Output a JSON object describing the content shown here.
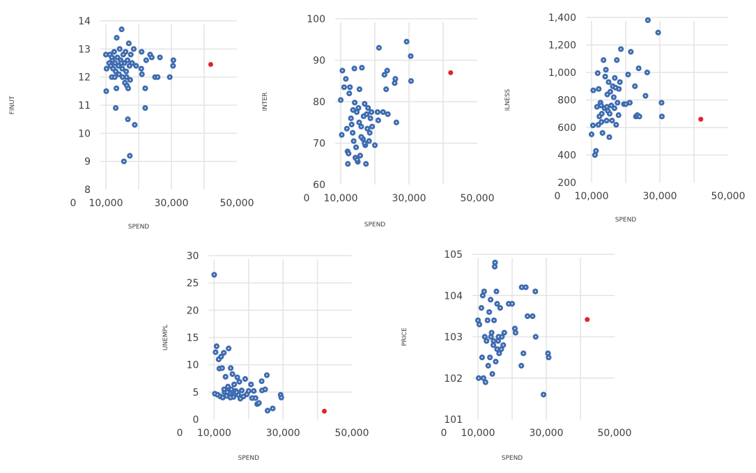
{
  "colors": {
    "point": "#3e6cb0",
    "highlight": "#e0242a",
    "grid": "#e3e3e3",
    "text": "#404040"
  },
  "chart_data": [
    {
      "type": "scatter",
      "id": "finut",
      "title": "",
      "xlabel": "SPEND",
      "ylabel": "FINUT",
      "xlim": [
        0,
        50000
      ],
      "ylim": [
        8,
        14
      ],
      "xticks": [
        0,
        10000,
        30000,
        50000
      ],
      "xtick_labels": [
        "0",
        "10,000",
        "30,000",
        "50,000"
      ],
      "xgrid": [
        10000,
        20000,
        30000,
        40000
      ],
      "yticks": [
        8,
        9,
        10,
        11,
        12,
        13,
        14
      ],
      "ytick_labels": [
        "8",
        "9",
        "10",
        "11",
        "12",
        "13",
        "14"
      ],
      "grid": true,
      "points": [
        [
          10000,
          12.8
        ],
        [
          10200,
          12.3
        ],
        [
          10100,
          11.5
        ],
        [
          11000,
          12.5
        ],
        [
          11200,
          12.8
        ],
        [
          11500,
          12.4
        ],
        [
          11800,
          12.0
        ],
        [
          12000,
          12.6
        ],
        [
          12200,
          12.3
        ],
        [
          12500,
          12.9
        ],
        [
          12800,
          12.5
        ],
        [
          13000,
          12.2
        ],
        [
          13200,
          11.6
        ],
        [
          13300,
          13.4
        ],
        [
          13500,
          12.7
        ],
        [
          13800,
          12.4
        ],
        [
          14000,
          12.1
        ],
        [
          14200,
          13.0
        ],
        [
          14500,
          12.6
        ],
        [
          14800,
          13.7
        ],
        [
          15000,
          12.3
        ],
        [
          15100,
          12.0
        ],
        [
          15300,
          12.8
        ],
        [
          15600,
          12.5
        ],
        [
          15800,
          11.8
        ],
        [
          16000,
          12.9
        ],
        [
          16200,
          12.2
        ],
        [
          16400,
          11.7
        ],
        [
          16600,
          12.6
        ],
        [
          16800,
          11.6
        ],
        [
          17000,
          13.2
        ],
        [
          17200,
          12.4
        ],
        [
          17400,
          11.9
        ],
        [
          17600,
          12.8
        ],
        [
          18000,
          12.5
        ],
        [
          18500,
          13.0
        ],
        [
          18800,
          10.3
        ],
        [
          19200,
          12.4
        ],
        [
          20800,
          12.3
        ],
        [
          20900,
          12.9
        ],
        [
          21000,
          12.1
        ],
        [
          22000,
          11.6
        ],
        [
          22300,
          12.6
        ],
        [
          23500,
          12.8
        ],
        [
          24000,
          12.7
        ],
        [
          25000,
          12.0
        ],
        [
          25800,
          12.0
        ],
        [
          26500,
          12.7
        ],
        [
          29500,
          12.0
        ],
        [
          30500,
          12.4
        ],
        [
          30600,
          12.6
        ],
        [
          13000,
          10.9
        ],
        [
          16700,
          10.5
        ],
        [
          15500,
          9.0
        ],
        [
          17300,
          9.2
        ],
        [
          22000,
          10.9
        ],
        [
          11800,
          12.7
        ],
        [
          12700,
          12.0
        ],
        [
          14700,
          12.5
        ],
        [
          16300,
          12.0
        ]
      ],
      "highlight_points": [
        [
          42000,
          12.45
        ]
      ]
    },
    {
      "type": "scatter",
      "id": "inter",
      "title": "",
      "xlabel": "SPEND",
      "ylabel": "INTER",
      "xlim": [
        0,
        50000
      ],
      "ylim": [
        60,
        100
      ],
      "xticks": [
        0,
        10000,
        30000,
        50000
      ],
      "xtick_labels": [
        "0",
        "10,000",
        "30,000",
        "50,000"
      ],
      "xgrid": [
        10000,
        20000,
        30000,
        40000
      ],
      "yticks": [
        60,
        70,
        80,
        90,
        100
      ],
      "ytick_labels": [
        "60",
        "70",
        "80",
        "90",
        "100"
      ],
      "grid": true,
      "points": [
        [
          10000,
          80.4
        ],
        [
          10300,
          72.0
        ],
        [
          10500,
          87.5
        ],
        [
          11000,
          83.5
        ],
        [
          11500,
          85.5
        ],
        [
          11800,
          73.5
        ],
        [
          12000,
          68.0
        ],
        [
          12100,
          65.0
        ],
        [
          12300,
          67.5
        ],
        [
          12500,
          82.0
        ],
        [
          12700,
          83.5
        ],
        [
          13000,
          76.0
        ],
        [
          13200,
          74.5
        ],
        [
          13500,
          72.5
        ],
        [
          13800,
          70.5
        ],
        [
          14000,
          88.0
        ],
        [
          14100,
          79.8
        ],
        [
          14300,
          66.5
        ],
        [
          14500,
          69.0
        ],
        [
          14700,
          77.5
        ],
        [
          15000,
          65.5
        ],
        [
          15200,
          78.5
        ],
        [
          15500,
          83.0
        ],
        [
          15700,
          67.0
        ],
        [
          16000,
          74.0
        ],
        [
          16200,
          88.2
        ],
        [
          16500,
          71.0
        ],
        [
          16700,
          76.5
        ],
        [
          17000,
          79.5
        ],
        [
          17200,
          69.5
        ],
        [
          17400,
          65.0
        ],
        [
          17600,
          77.0
        ],
        [
          17800,
          73.5
        ],
        [
          18000,
          78.5
        ],
        [
          18300,
          70.5
        ],
        [
          18500,
          72.5
        ],
        [
          18700,
          76.0
        ],
        [
          19000,
          77.5
        ],
        [
          19200,
          74.0
        ],
        [
          20000,
          69.5
        ],
        [
          20800,
          77.5
        ],
        [
          21000,
          75.5
        ],
        [
          21200,
          93.0
        ],
        [
          22400,
          77.5
        ],
        [
          22800,
          86.5
        ],
        [
          23300,
          83.0
        ],
        [
          23600,
          87.5
        ],
        [
          23800,
          77.0
        ],
        [
          25800,
          84.5
        ],
        [
          26000,
          85.5
        ],
        [
          26300,
          75.0
        ],
        [
          29300,
          94.5
        ],
        [
          30500,
          91.0
        ],
        [
          30600,
          85.0
        ],
        [
          16000,
          71.5
        ],
        [
          14800,
          66.0
        ],
        [
          17000,
          70.0
        ],
        [
          15400,
          75.0
        ],
        [
          13600,
          78.0
        ]
      ],
      "highlight_points": [
        [
          42200,
          87.0
        ]
      ]
    },
    {
      "type": "scatter",
      "id": "ilness",
      "title": "",
      "xlabel": "SPEND",
      "ylabel": "ILNESS",
      "xlim": [
        0,
        50000
      ],
      "ylim": [
        200,
        1400
      ],
      "xticks": [
        0,
        10000,
        30000,
        50000
      ],
      "xtick_labels": [
        "0",
        "10,000",
        "30,000",
        "50,000"
      ],
      "xgrid": [
        10000,
        20000,
        30000,
        40000
      ],
      "yticks": [
        200,
        400,
        600,
        800,
        1000,
        1200,
        1400
      ],
      "ytick_labels": [
        "200",
        "400",
        "600",
        "800",
        "1,000",
        "1,200",
        "1,400"
      ],
      "grid": true,
      "points": [
        [
          10000,
          550
        ],
        [
          10400,
          615
        ],
        [
          10500,
          870
        ],
        [
          11000,
          400
        ],
        [
          11300,
          430
        ],
        [
          11600,
          750
        ],
        [
          11800,
          995
        ],
        [
          12000,
          620
        ],
        [
          12100,
          880
        ],
        [
          12300,
          680
        ],
        [
          12600,
          780
        ],
        [
          12900,
          640
        ],
        [
          13000,
          700
        ],
        [
          13200,
          560
        ],
        [
          13500,
          1090
        ],
        [
          13800,
          740
        ],
        [
          14000,
          970
        ],
        [
          14200,
          1020
        ],
        [
          14400,
          650
        ],
        [
          14600,
          840
        ],
        [
          14800,
          720
        ],
        [
          15000,
          930
        ],
        [
          15200,
          530
        ],
        [
          15500,
          860
        ],
        [
          15800,
          760
        ],
        [
          16000,
          650
        ],
        [
          16200,
          900
        ],
        [
          16500,
          820
        ],
        [
          16800,
          960
        ],
        [
          17000,
          890
        ],
        [
          17200,
          620
        ],
        [
          17400,
          1090
        ],
        [
          17600,
          780
        ],
        [
          17900,
          690
        ],
        [
          18000,
          880
        ],
        [
          18300,
          930
        ],
        [
          18600,
          1170
        ],
        [
          19500,
          770
        ],
        [
          20000,
          770
        ],
        [
          20700,
          985
        ],
        [
          21200,
          780
        ],
        [
          21500,
          1150
        ],
        [
          22700,
          900
        ],
        [
          23000,
          680
        ],
        [
          23400,
          690
        ],
        [
          23800,
          1030
        ],
        [
          24000,
          680
        ],
        [
          25800,
          830
        ],
        [
          26300,
          1000
        ],
        [
          26500,
          1380
        ],
        [
          29500,
          1290
        ],
        [
          30500,
          780
        ],
        [
          30600,
          680
        ],
        [
          14500,
          750
        ],
        [
          15300,
          700
        ],
        [
          16700,
          740
        ],
        [
          12800,
          760
        ]
      ],
      "highlight_points": [
        [
          42000,
          660
        ]
      ]
    },
    {
      "type": "scatter",
      "id": "unempl",
      "title": "",
      "xlabel": "SPEND",
      "ylabel": "UNEMPL",
      "xlim": [
        0,
        50000
      ],
      "ylim": [
        0,
        30
      ],
      "xticks": [
        0,
        10000,
        30000,
        50000
      ],
      "xtick_labels": [
        "0",
        "10,000",
        "30,000",
        "50,000"
      ],
      "xgrid": [
        10000,
        20000,
        30000,
        40000
      ],
      "yticks": [
        0,
        5,
        10,
        15,
        20,
        25,
        30
      ],
      "ytick_labels": [
        "0",
        "5",
        "10",
        "15",
        "20",
        "25",
        "30"
      ],
      "grid": true,
      "points": [
        [
          10000,
          26.5
        ],
        [
          10200,
          4.7
        ],
        [
          10400,
          12.3
        ],
        [
          10700,
          13.4
        ],
        [
          11000,
          4.5
        ],
        [
          11300,
          11.0
        ],
        [
          11500,
          9.3
        ],
        [
          11800,
          4.2
        ],
        [
          12000,
          11.5
        ],
        [
          12300,
          9.4
        ],
        [
          12500,
          4.0
        ],
        [
          12800,
          12.2
        ],
        [
          13000,
          5.0
        ],
        [
          13300,
          7.8
        ],
        [
          13600,
          4.3
        ],
        [
          14000,
          6.0
        ],
        [
          14200,
          13.0
        ],
        [
          14500,
          4.8
        ],
        [
          14800,
          9.4
        ],
        [
          15000,
          5.5
        ],
        [
          15300,
          8.3
        ],
        [
          15600,
          4.1
        ],
        [
          15800,
          6.4
        ],
        [
          16000,
          4.7
        ],
        [
          16300,
          5.2
        ],
        [
          16700,
          7.7
        ],
        [
          17000,
          4.5
        ],
        [
          17300,
          6.9
        ],
        [
          17600,
          3.8
        ],
        [
          18000,
          5.3
        ],
        [
          18500,
          4.2
        ],
        [
          19000,
          7.4
        ],
        [
          19500,
          4.6
        ],
        [
          20000,
          5.2
        ],
        [
          20700,
          6.4
        ],
        [
          21000,
          3.9
        ],
        [
          21500,
          5.2
        ],
        [
          22000,
          3.9
        ],
        [
          22500,
          2.8
        ],
        [
          23000,
          3.0
        ],
        [
          23800,
          7.0
        ],
        [
          23900,
          5.3
        ],
        [
          24800,
          5.5
        ],
        [
          25300,
          8.1
        ],
        [
          25500,
          1.6
        ],
        [
          27000,
          2.0
        ],
        [
          29300,
          4.5
        ],
        [
          29500,
          4.0
        ],
        [
          13800,
          5.0
        ],
        [
          14700,
          4.0
        ],
        [
          12900,
          5.5
        ],
        [
          16500,
          5.0
        ]
      ],
      "highlight_points": [
        [
          42000,
          1.5
        ]
      ]
    },
    {
      "type": "scatter",
      "id": "price",
      "title": "",
      "xlabel": "SPEND",
      "ylabel": "PRICE",
      "xlim": [
        0,
        50000
      ],
      "ylim": [
        101,
        105
      ],
      "xticks": [
        0,
        10000,
        30000,
        50000
      ],
      "xtick_labels": [
        "0",
        "10,000",
        "30,000",
        "50,000"
      ],
      "xgrid": [
        10000,
        20000,
        30000,
        40000
      ],
      "yticks": [
        101,
        102,
        103,
        104,
        105
      ],
      "ytick_labels": [
        "101",
        "102",
        "103",
        "104",
        "105"
      ],
      "grid": true,
      "points": [
        [
          10000,
          103.4
        ],
        [
          10200,
          102.0
        ],
        [
          10400,
          103.3
        ],
        [
          11000,
          103.7
        ],
        [
          11200,
          102.5
        ],
        [
          11400,
          104.0
        ],
        [
          11600,
          102.0
        ],
        [
          11800,
          104.1
        ],
        [
          12000,
          103.0
        ],
        [
          12200,
          101.9
        ],
        [
          12500,
          102.9
        ],
        [
          12800,
          103.4
        ],
        [
          13000,
          102.3
        ],
        [
          13300,
          103.6
        ],
        [
          13500,
          102.5
        ],
        [
          13700,
          103.9
        ],
        [
          14000,
          103.1
        ],
        [
          14200,
          102.1
        ],
        [
          14500,
          102.8
        ],
        [
          14700,
          103.4
        ],
        [
          14900,
          104.7
        ],
        [
          15000,
          104.8
        ],
        [
          15200,
          102.4
        ],
        [
          15400,
          104.1
        ],
        [
          15600,
          103.8
        ],
        [
          15900,
          102.9
        ],
        [
          16200,
          102.6
        ],
        [
          16500,
          103.7
        ],
        [
          16800,
          102.7
        ],
        [
          17000,
          103.0
        ],
        [
          17400,
          102.8
        ],
        [
          17700,
          103.1
        ],
        [
          19000,
          103.8
        ],
        [
          20000,
          103.8
        ],
        [
          20800,
          103.2
        ],
        [
          21000,
          103.1
        ],
        [
          22700,
          102.3
        ],
        [
          22800,
          104.2
        ],
        [
          23300,
          102.6
        ],
        [
          24000,
          104.2
        ],
        [
          24500,
          103.5
        ],
        [
          26000,
          103.5
        ],
        [
          26800,
          104.1
        ],
        [
          26900,
          103.0
        ],
        [
          29200,
          101.6
        ],
        [
          30500,
          102.6
        ],
        [
          30700,
          102.5
        ],
        [
          13800,
          103.0
        ],
        [
          14600,
          102.9
        ],
        [
          15600,
          102.7
        ],
        [
          16000,
          103.0
        ]
      ],
      "highlight_points": [
        [
          42000,
          103.42
        ]
      ]
    }
  ]
}
